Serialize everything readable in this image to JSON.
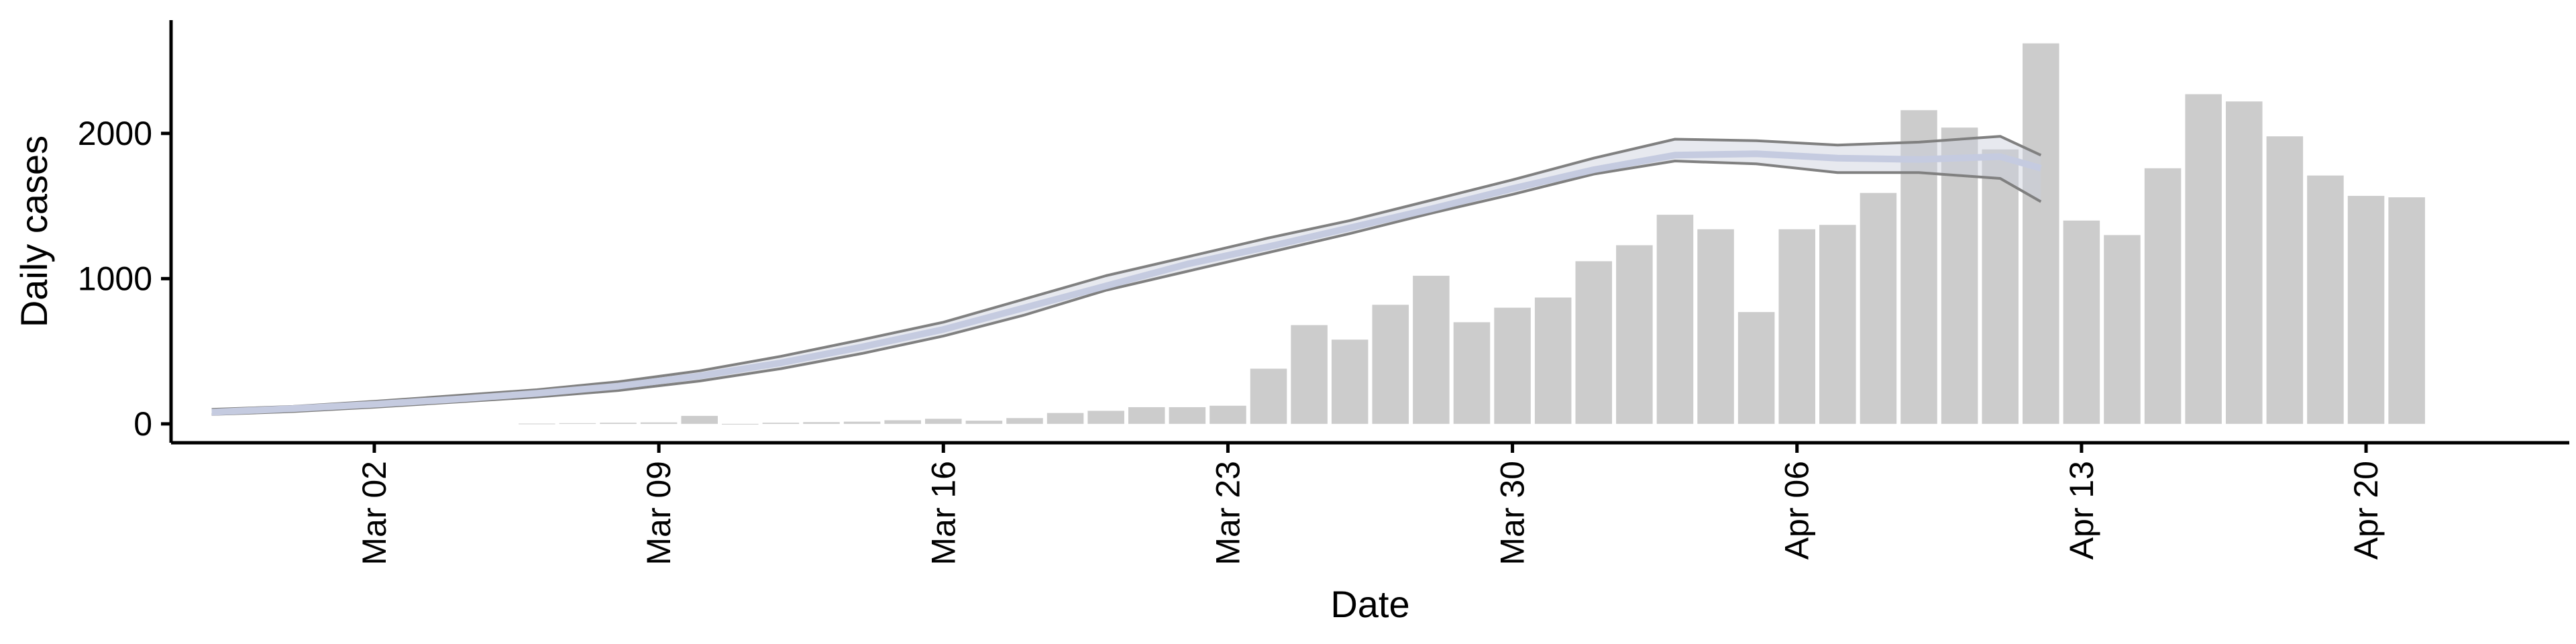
{
  "chart_data": {
    "type": "bar",
    "xlabel": "Date",
    "ylabel": "Daily cases",
    "x_ticks": [
      "Mar 02",
      "Mar 09",
      "Mar 16",
      "Mar 23",
      "Mar 30",
      "Apr 06",
      "Apr 13",
      "Apr 20"
    ],
    "y_ticks": [
      0,
      1000,
      2000
    ],
    "ylim": [
      -130,
      2780
    ],
    "xlim": [
      "2020-02-26",
      "2020-04-25"
    ],
    "grid": false,
    "legend": "none",
    "colors": {
      "bars": "#cccccc",
      "fit_line": "#c5cbe0",
      "band_edge": "#808080",
      "band_fill": "#c9cedc",
      "axis": "#000000"
    },
    "bars": {
      "x": [
        "2020-03-06",
        "2020-03-07",
        "2020-03-08",
        "2020-03-09",
        "2020-03-10",
        "2020-03-11",
        "2020-03-12",
        "2020-03-13",
        "2020-03-14",
        "2020-03-15",
        "2020-03-16",
        "2020-03-17",
        "2020-03-18",
        "2020-03-19",
        "2020-03-20",
        "2020-03-21",
        "2020-03-22",
        "2020-03-23",
        "2020-03-24",
        "2020-03-25",
        "2020-03-26",
        "2020-03-27",
        "2020-03-28",
        "2020-03-29",
        "2020-03-30",
        "2020-03-31",
        "2020-04-01",
        "2020-04-02",
        "2020-04-03",
        "2020-04-04",
        "2020-04-05",
        "2020-04-06",
        "2020-04-07",
        "2020-04-08",
        "2020-04-09",
        "2020-04-10",
        "2020-04-11",
        "2020-04-12",
        "2020-04-13",
        "2020-04-14",
        "2020-04-15",
        "2020-04-16",
        "2020-04-17",
        "2020-04-18",
        "2020-04-19",
        "2020-04-20",
        "2020-04-21"
      ],
      "values": [
        2,
        5,
        8,
        10,
        55,
        0,
        8,
        12,
        15,
        25,
        35,
        22,
        40,
        75,
        90,
        115,
        115,
        125,
        380,
        680,
        580,
        820,
        1020,
        700,
        800,
        870,
        1120,
        1230,
        1440,
        1340,
        770,
        1340,
        1370,
        1590,
        2160,
        2040,
        1890,
        2620,
        1400,
        1300,
        1760,
        2270,
        2220,
        1980,
        1710,
        1570,
        1560
      ]
    },
    "fit": {
      "x": [
        "2020-02-27",
        "2020-02-29",
        "2020-03-02",
        "2020-03-04",
        "2020-03-06",
        "2020-03-08",
        "2020-03-10",
        "2020-03-12",
        "2020-03-14",
        "2020-03-16",
        "2020-03-18",
        "2020-03-20",
        "2020-03-22",
        "2020-03-24",
        "2020-03-26",
        "2020-03-28",
        "2020-03-30",
        "2020-04-01",
        "2020-04-03",
        "2020-04-05",
        "2020-04-07",
        "2020-04-09",
        "2020-04-11",
        "2020-04-12"
      ],
      "mid": [
        80,
        105,
        135,
        170,
        210,
        260,
        330,
        420,
        530,
        650,
        800,
        950,
        1100,
        1220,
        1350,
        1480,
        1620,
        1750,
        1850,
        1860,
        1830,
        1820,
        1840,
        1760
      ],
      "lower": [
        65,
        85,
        115,
        150,
        185,
        230,
        295,
        380,
        485,
        605,
        750,
        920,
        1050,
        1180,
        1310,
        1450,
        1580,
        1720,
        1810,
        1790,
        1730,
        1730,
        1690,
        1530
      ],
      "upper": [
        100,
        120,
        155,
        195,
        235,
        290,
        365,
        465,
        580,
        700,
        860,
        1020,
        1150,
        1280,
        1400,
        1540,
        1680,
        1830,
        1960,
        1950,
        1920,
        1940,
        1980,
        1850
      ]
    }
  }
}
